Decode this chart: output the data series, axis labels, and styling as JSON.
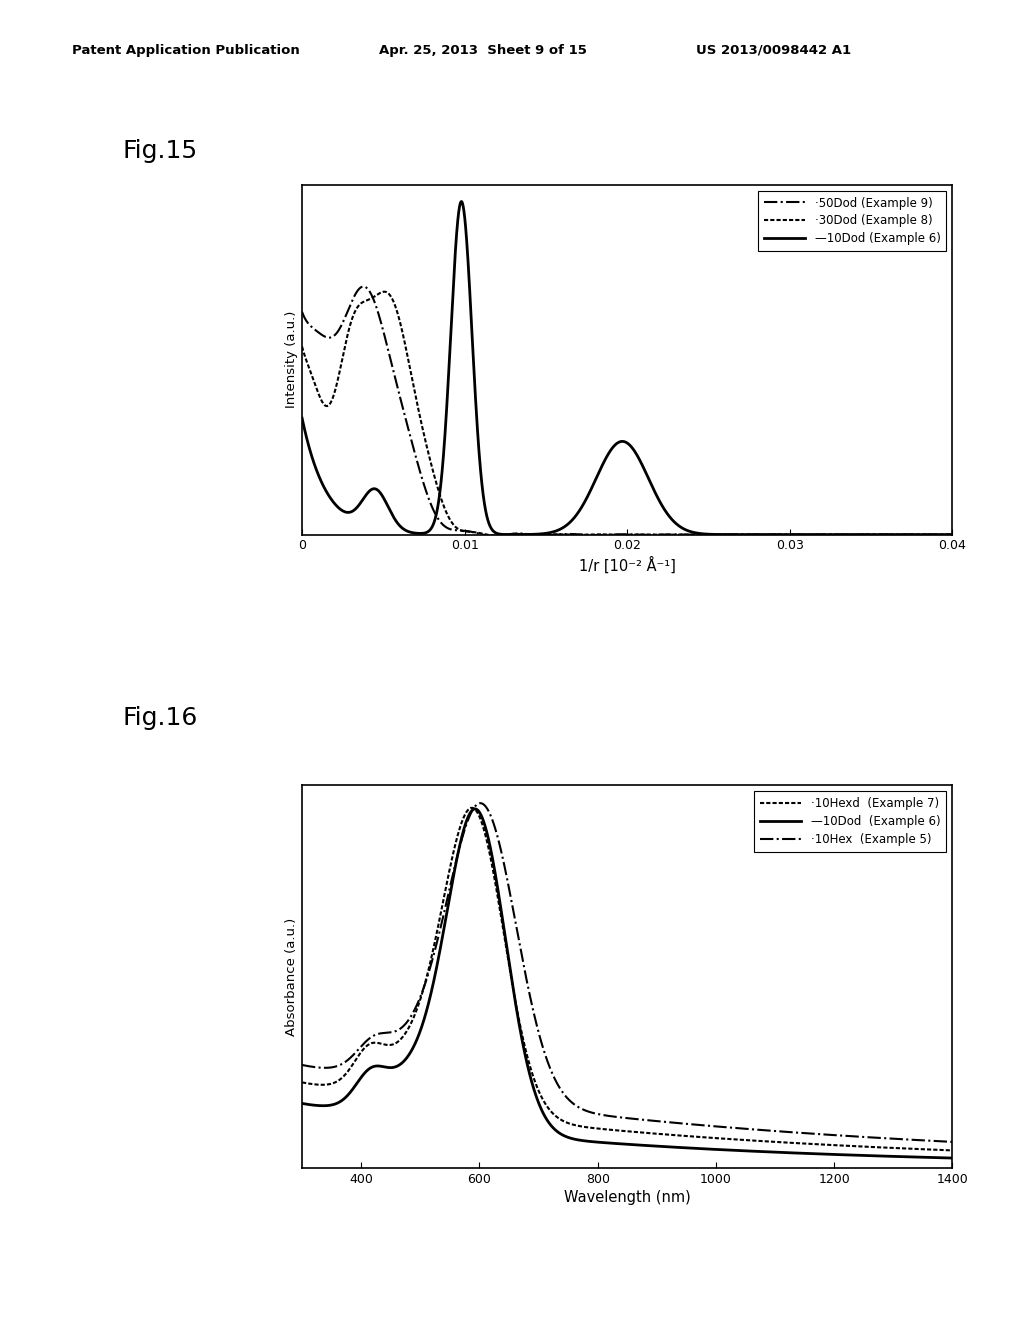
{
  "fig15": {
    "title": "Fig.15",
    "xlabel": "1/r [10⁻² Å⁻¹]",
    "ylabel": "Intensity (a.u.)",
    "xlim": [
      0,
      0.04
    ]
  },
  "fig16": {
    "title": "Fig.16",
    "xlabel": "Wavelength (nm)",
    "ylabel": "Absorbance (a.u.)",
    "xlim": [
      300,
      1400
    ],
    "xticks": [
      400,
      600,
      800,
      1000,
      1200,
      1400
    ]
  },
  "header_left": "Patent Application Publication",
  "header_mid": "Apr. 25, 2013  Sheet 9 of 15",
  "header_right": "US 2013/0098442 A1",
  "bg_color": "#ffffff",
  "plot_bg": "#ffffff",
  "text_color": "#000000"
}
